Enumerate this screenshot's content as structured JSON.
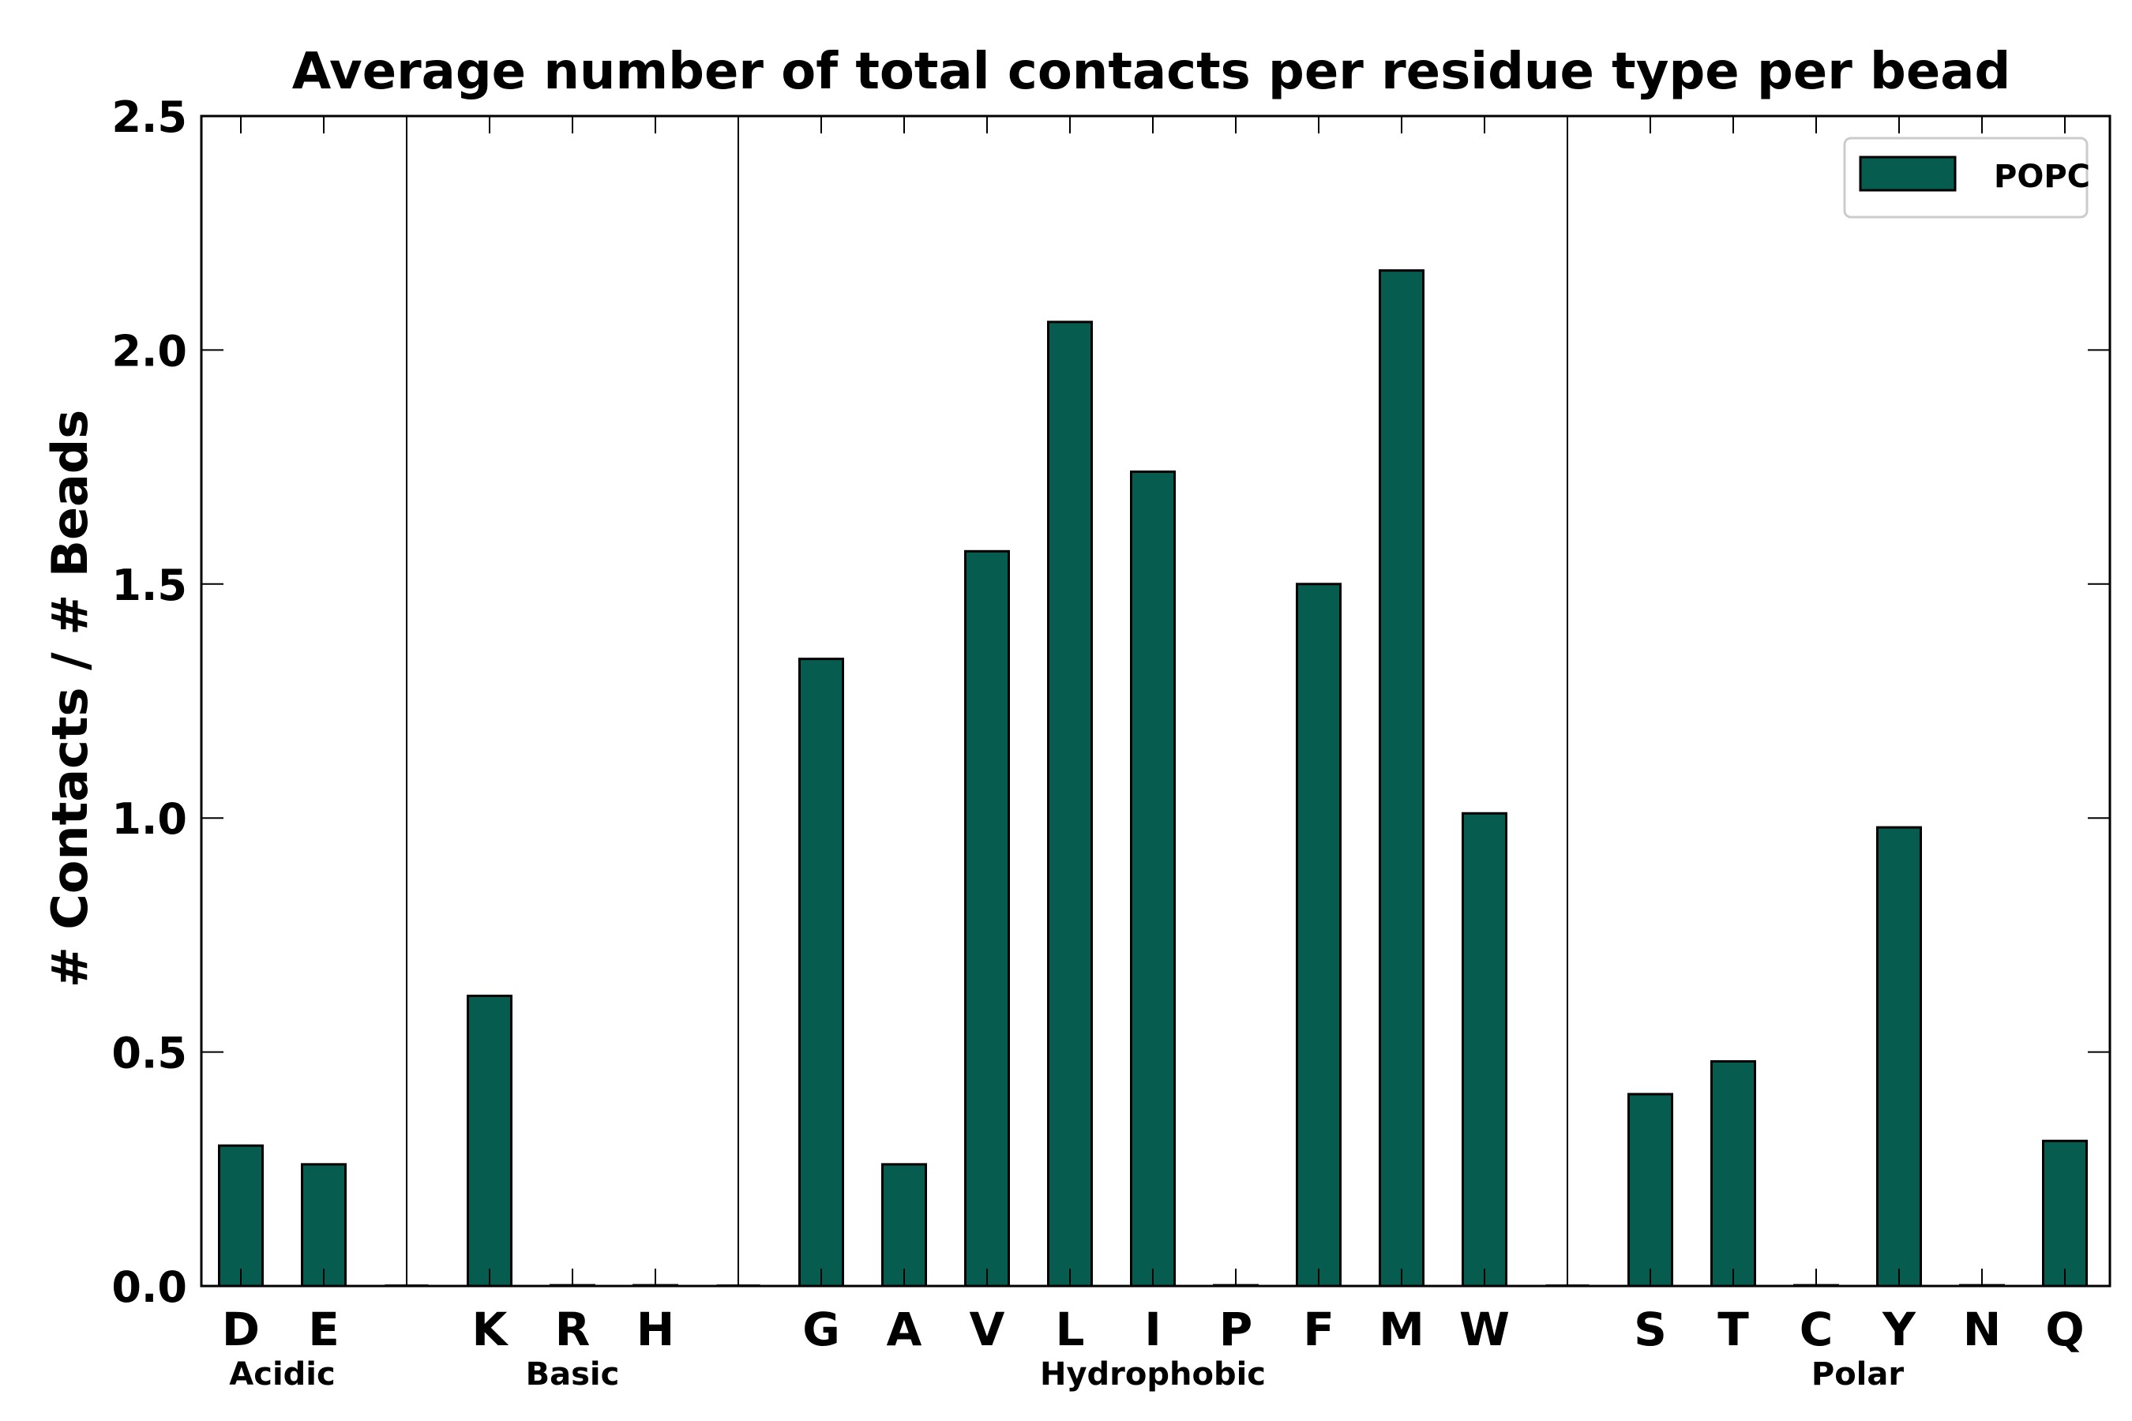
{
  "chart_data": {
    "type": "bar",
    "title": "Average number of total contacts per residue type per bead",
    "xlabel": "",
    "ylabel": "# Contacts / # Beads",
    "ylim": [
      0,
      2.5
    ],
    "yticks": [
      "0.0",
      "0.5",
      "1.0",
      "1.5",
      "2.0",
      "2.5"
    ],
    "ytick_values": [
      0,
      0.5,
      1.0,
      1.5,
      2.0,
      2.5
    ],
    "bar_color": "#065c4e",
    "grid": false,
    "legend_position": "top-right",
    "categories": [
      "D",
      "E",
      "K",
      "R",
      "H",
      "G",
      "A",
      "V",
      "L",
      "I",
      "P",
      "F",
      "M",
      "W",
      "S",
      "T",
      "C",
      "Y",
      "N",
      "Q"
    ],
    "series": [
      {
        "name": "POPC",
        "values": [
          0.3,
          0.26,
          0.62,
          0.0,
          0.0,
          1.34,
          0.26,
          1.57,
          2.06,
          1.74,
          0.0,
          1.5,
          2.17,
          1.01,
          0.41,
          0.48,
          0.0,
          0.98,
          0.0,
          0.31
        ]
      }
    ],
    "groups": [
      {
        "label": "Acidic",
        "categories": [
          "D",
          "E"
        ]
      },
      {
        "label": "Basic",
        "categories": [
          "K",
          "R",
          "H"
        ]
      },
      {
        "label": "Hydrophobic",
        "categories": [
          "G",
          "A",
          "V",
          "L",
          "I",
          "P",
          "F",
          "M",
          "W"
        ]
      },
      {
        "label": "Polar",
        "categories": [
          "S",
          "T",
          "C",
          "Y",
          "N",
          "Q"
        ]
      }
    ]
  }
}
